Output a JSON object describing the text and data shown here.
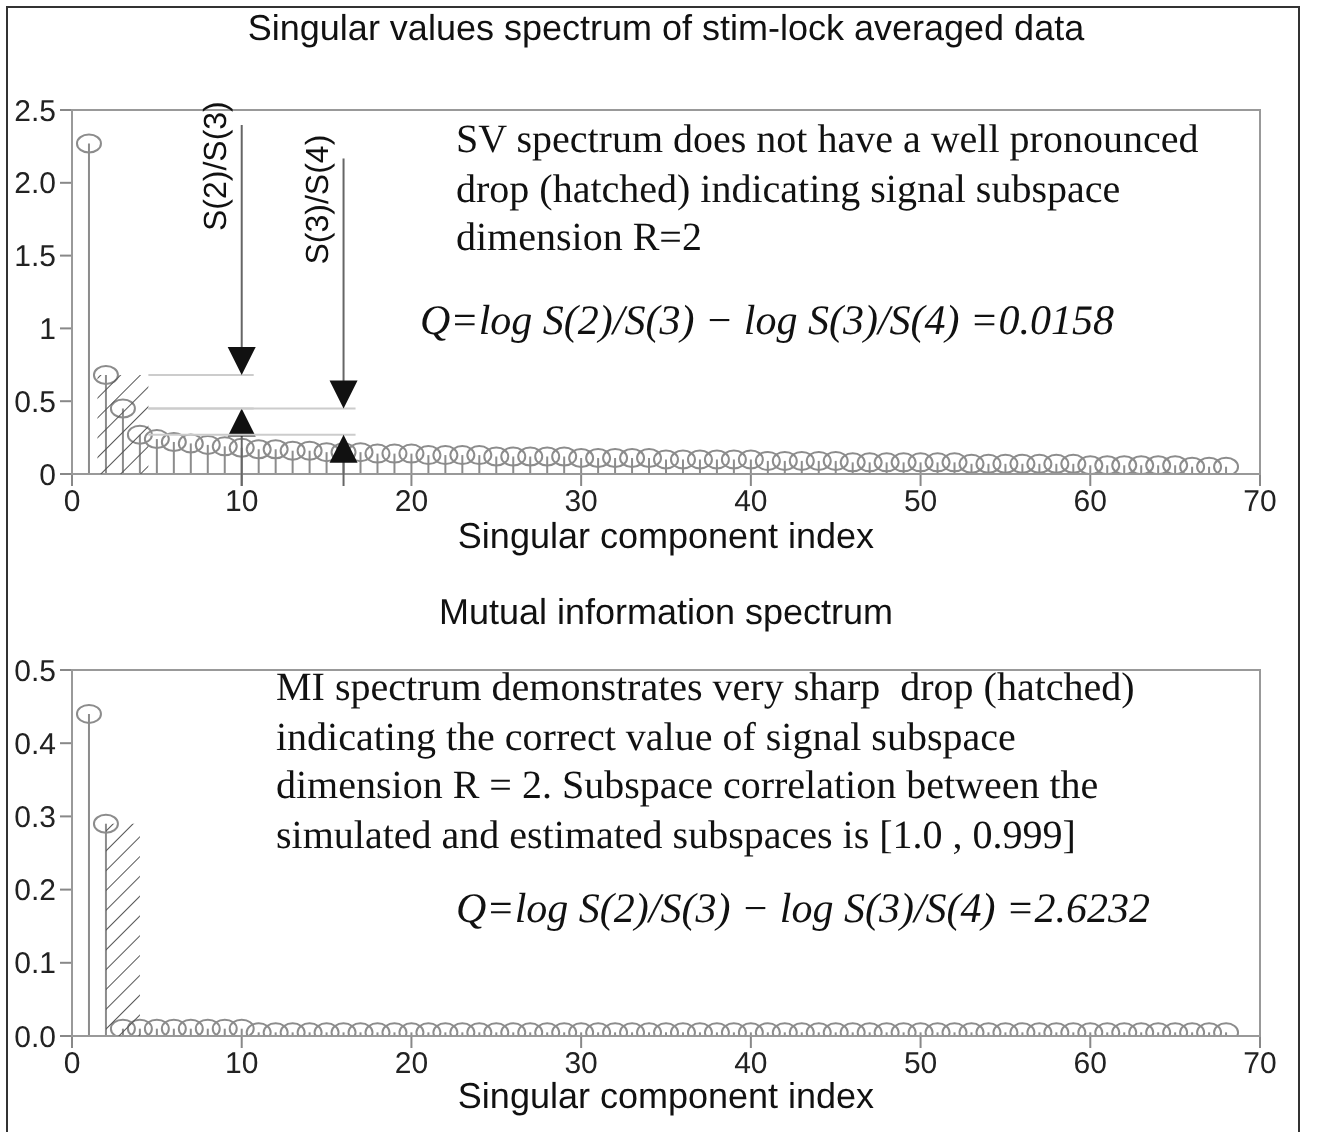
{
  "chart_data": [
    {
      "type": "lollipop",
      "title": "Singular values spectrum of stim-lock averaged data",
      "xlabel": "Singular component index",
      "x": [
        1,
        2,
        3,
        4,
        5,
        6,
        7,
        8,
        9,
        10,
        11,
        12,
        13,
        14,
        15,
        16,
        17,
        18,
        19,
        20,
        21,
        22,
        23,
        24,
        25,
        26,
        27,
        28,
        29,
        30,
        31,
        32,
        33,
        34,
        35,
        36,
        37,
        38,
        39,
        40,
        41,
        42,
        43,
        44,
        45,
        46,
        47,
        48,
        49,
        50,
        51,
        52,
        53,
        54,
        55,
        56,
        57,
        58,
        59,
        60,
        61,
        62,
        63,
        64,
        65,
        66,
        67,
        68
      ],
      "series": [
        {
          "color": "#8c8c8c",
          "values": [
            2.27,
            0.68,
            0.45,
            0.27,
            0.24,
            0.22,
            0.21,
            0.2,
            0.19,
            0.18,
            0.17,
            0.17,
            0.16,
            0.16,
            0.15,
            0.15,
            0.15,
            0.14,
            0.14,
            0.14,
            0.13,
            0.13,
            0.13,
            0.13,
            0.12,
            0.12,
            0.12,
            0.12,
            0.12,
            0.11,
            0.11,
            0.11,
            0.11,
            0.11,
            0.1,
            0.1,
            0.1,
            0.1,
            0.1,
            0.1,
            0.09,
            0.09,
            0.09,
            0.09,
            0.09,
            0.08,
            0.08,
            0.08,
            0.08,
            0.08,
            0.08,
            0.08,
            0.07,
            0.07,
            0.07,
            0.07,
            0.07,
            0.07,
            0.07,
            0.06,
            0.06,
            0.06,
            0.06,
            0.06,
            0.06,
            0.05,
            0.05,
            0.05
          ]
        }
      ],
      "marker": "circle",
      "xlim": [
        0,
        70
      ],
      "xticks": [
        0,
        10,
        20,
        30,
        40,
        50,
        60,
        70
      ],
      "ylim": [
        0,
        2.5
      ],
      "yticks": [
        0,
        0.5,
        1,
        1.5,
        {
          "value": 2,
          "label": "2.0"
        },
        2.5
      ],
      "bands": [
        {
          "axis": "x",
          "from": 1.5,
          "to": 4.5,
          "color": "#555555"
        }
      ],
      "annotations": [
        "SV spectrum does not have a well pronounced\ndrop (hatched) indicating signal subspace\ndimension R=2",
        "Q=log S(2)/S(3) − log S(3)/S(4) =0.0158",
        "S(2)/S(3)",
        "S(3)/S(4)"
      ]
    },
    {
      "type": "lollipop",
      "title": "Mutual information spectrum",
      "xlabel": "Singular component index",
      "x": [
        1,
        2,
        3,
        4,
        5,
        6,
        7,
        8,
        9,
        10,
        11,
        12,
        13,
        14,
        15,
        16,
        17,
        18,
        19,
        20,
        21,
        22,
        23,
        24,
        25,
        26,
        27,
        28,
        29,
        30,
        31,
        32,
        33,
        34,
        35,
        36,
        37,
        38,
        39,
        40,
        41,
        42,
        43,
        44,
        45,
        46,
        47,
        48,
        49,
        50,
        51,
        52,
        53,
        54,
        55,
        56,
        57,
        58,
        59,
        60,
        61,
        62,
        63,
        64,
        65,
        66,
        67,
        68
      ],
      "series": [
        {
          "color": "#8c8c8c",
          "values": [
            0.44,
            0.29,
            0.01,
            0.01,
            0.01,
            0.01,
            0.01,
            0.01,
            0.01,
            0.01,
            0.005,
            0.005,
            0.005,
            0.005,
            0.005,
            0.005,
            0.005,
            0.005,
            0.005,
            0.005,
            0.005,
            0.005,
            0.005,
            0.005,
            0.005,
            0.005,
            0.005,
            0.005,
            0.005,
            0.005,
            0.005,
            0.005,
            0.005,
            0.005,
            0.005,
            0.005,
            0.005,
            0.005,
            0.005,
            0.005,
            0.005,
            0.005,
            0.005,
            0.005,
            0.005,
            0.005,
            0.005,
            0.005,
            0.005,
            0.005,
            0.005,
            0.005,
            0.005,
            0.005,
            0.005,
            0.005,
            0.005,
            0.005,
            0.005,
            0.005,
            0.005,
            0.005,
            0.005,
            0.005,
            0.005,
            0.005,
            0.005,
            0.005
          ]
        }
      ],
      "marker": "circle",
      "xlim": [
        0,
        70
      ],
      "xticks": [
        0,
        10,
        20,
        30,
        40,
        50,
        60,
        70
      ],
      "ylim": [
        0,
        0.5
      ],
      "yticks": [
        {
          "value": 0,
          "label": "0.0"
        },
        0.1,
        0.2,
        0.3,
        0.4,
        0.5
      ],
      "bands": [
        {
          "axis": "x",
          "from": 2,
          "to": 4,
          "color": "#555555"
        }
      ],
      "annotations": [
        "MI spectrum demonstrates very sharp  drop (hatched)\nindicating the correct value of signal subspace\ndimension R = 2. Subspace correlation between the\nsimulated and estimated subspaces is [1.0 , 0.999]",
        "Q=log S(2)/S(3) − log S(3)/S(4) =2.6232"
      ]
    }
  ]
}
